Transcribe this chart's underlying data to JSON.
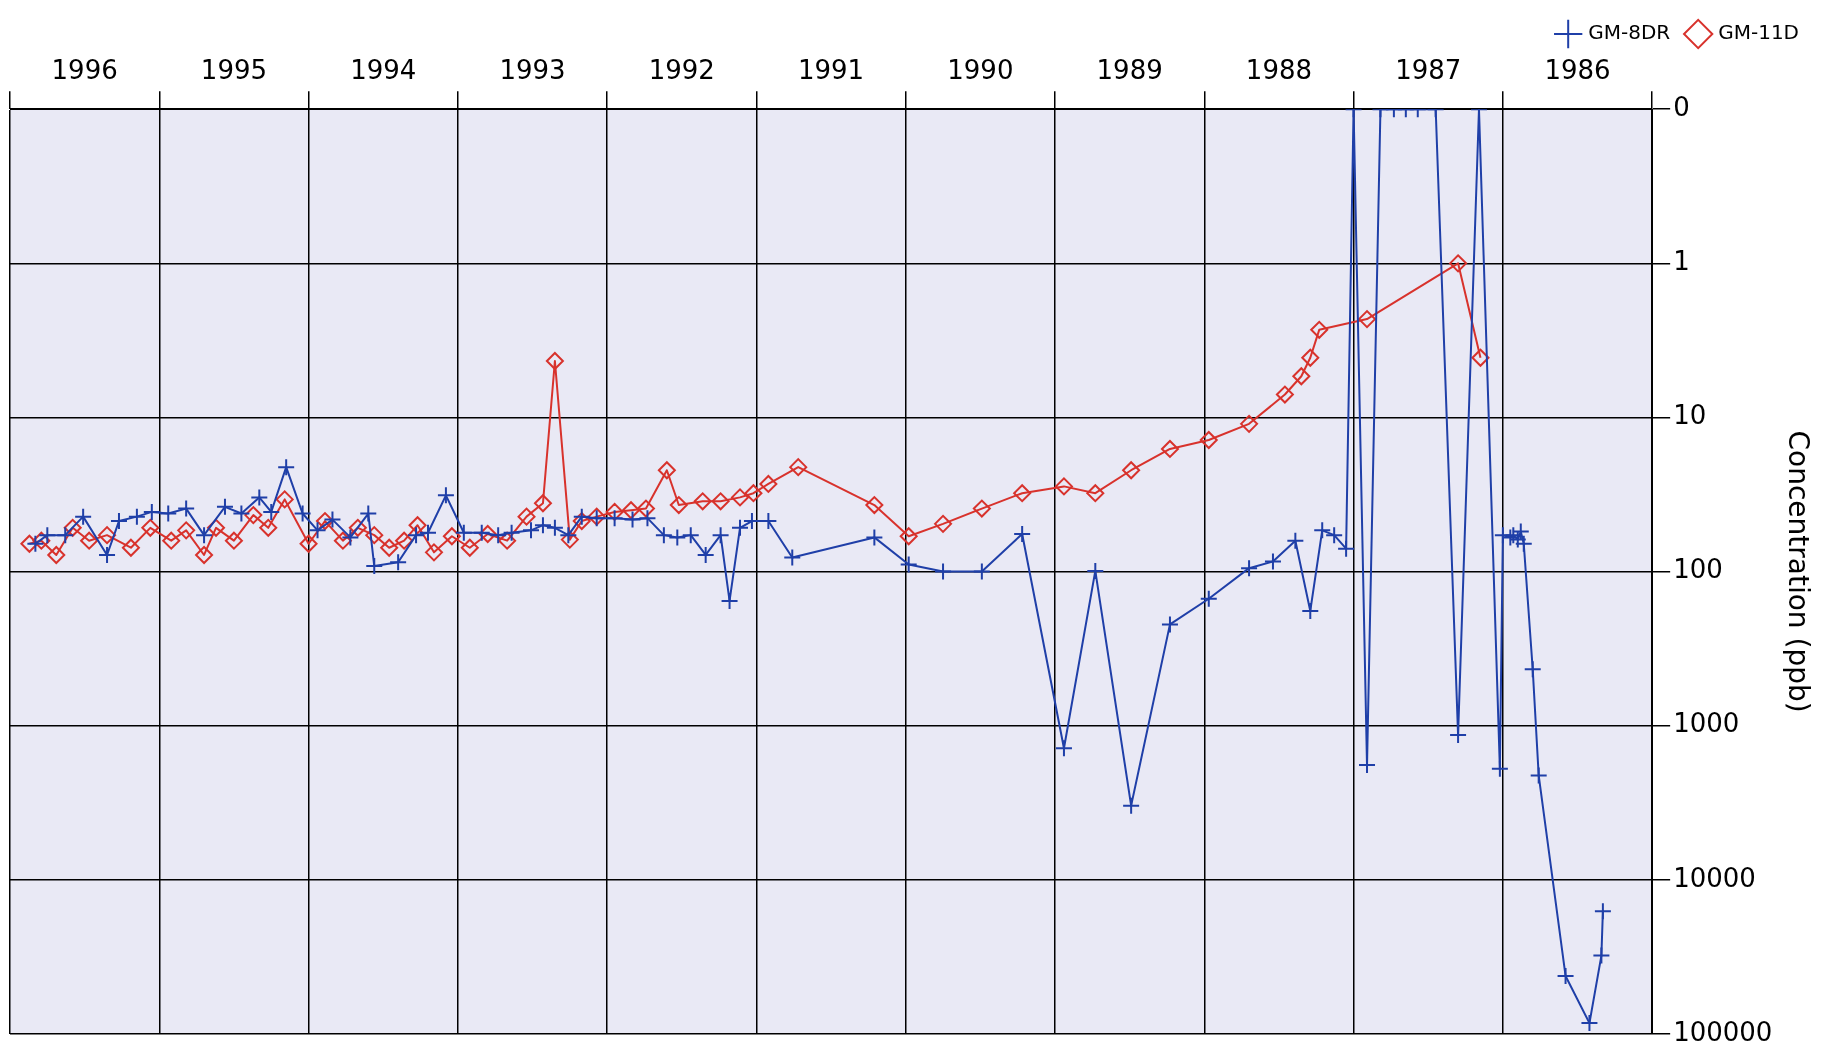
{
  "chart_data": {
    "type": "line",
    "ylabel": "Concentration (ppb)",
    "log": "y",
    "grid": true,
    "legend": "top right",
    "xlim": [
      1996,
      1985
    ],
    "xticks": [
      {
        "value": 1985,
        "label": null
      },
      {
        "value": 1985.5,
        "label": "1986"
      },
      {
        "value": 1986,
        "label": null
      },
      {
        "value": 1986.5,
        "label": "1987"
      },
      {
        "value": 1987,
        "label": null
      },
      {
        "value": 1987.5,
        "label": "1988"
      },
      {
        "value": 1988,
        "label": null
      },
      {
        "value": 1988.5,
        "label": "1989"
      },
      {
        "value": 1989,
        "label": null
      },
      {
        "value": 1989.5,
        "label": "1990"
      },
      {
        "value": 1990,
        "label": null
      },
      {
        "value": 1990.5,
        "label": "1991"
      },
      {
        "value": 1991,
        "label": null
      },
      {
        "value": 1991.5,
        "label": "1992"
      },
      {
        "value": 1992,
        "label": null
      },
      {
        "value": 1992.5,
        "label": "1993"
      },
      {
        "value": 1993,
        "label": null
      },
      {
        "value": 1993.5,
        "label": "1994"
      },
      {
        "value": 1994,
        "label": null
      },
      {
        "value": 1994.5,
        "label": "1995"
      },
      {
        "value": 1995,
        "label": null
      },
      {
        "value": 1995.5,
        "label": "1996"
      },
      {
        "value": 1996,
        "label": null
      }
    ],
    "ylim": [
      100000,
      0.1
    ],
    "yticks": [
      {
        "value": 0.1,
        "label": "0"
      },
      1,
      10,
      100,
      1000,
      10000,
      100000
    ],
    "series": [
      {
        "name": "GM-8DR",
        "color": "#1f3fa8",
        "marker": "cross",
        "x": [
          1985.33,
          1985.34,
          1985.42,
          1985.58,
          1985.76,
          1985.8,
          1985.86,
          1985.88,
          1985.9,
          1985.93,
          1985.95,
          1986,
          1986.02,
          1986.16,
          1986.3,
          1986.45,
          1986.57,
          1986.65,
          1986.73,
          1986.82,
          1986.91,
          1987,
          1987.05,
          1987.13,
          1987.21,
          1987.29,
          1987.39,
          1987.54,
          1987.7,
          1987.97,
          1988.23,
          1988.49,
          1988.73,
          1988.94,
          1989.22,
          1989.49,
          1989.75,
          1989.98,
          1990.21,
          1990.76,
          1990.92,
          1991.03,
          1991.11,
          1991.18,
          1991.24,
          1991.34,
          1991.44,
          1991.53,
          1991.62,
          1991.73,
          1991.83,
          1991.95,
          1992.07,
          1992.17,
          1992.26,
          1992.35,
          1992.43,
          1992.51,
          1992.64,
          1992.73,
          1992.84,
          1992.96,
          1993.08,
          1993.2,
          1993.28,
          1993.4,
          1993.56,
          1993.6,
          1993.72,
          1993.84,
          1993.94,
          1994.04,
          1994.15,
          1994.25,
          1994.33,
          1994.45,
          1994.56,
          1994.7,
          1994.82,
          1994.94,
          1995.05,
          1995.15,
          1995.27,
          1995.35,
          1995.51,
          1995.63,
          1995.75,
          1995.83
        ],
        "values": [
          16000,
          31000,
          85000,
          42000,
          2100,
          430,
          66,
          55,
          62,
          58,
          60,
          58,
          1900,
          0.1,
          1150,
          0.1,
          0.1,
          0.1,
          0.1,
          0.1,
          1800,
          0.1,
          71,
          58,
          54,
          180,
          63,
          86,
          95,
          150,
          220,
          3300,
          99,
          1400,
          57,
          100,
          100,
          90,
          60,
          81,
          47,
          47,
          52,
          155,
          58,
          78,
          58,
          60,
          58,
          45,
          46,
          45,
          45,
          44,
          58,
          52,
          50,
          54,
          56,
          58,
          56,
          56,
          32,
          56,
          58,
          87,
          92,
          42,
          60,
          46,
          54,
          42,
          21,
          41,
          33,
          42,
          38,
          58,
          39,
          42,
          41,
          44,
          47,
          78,
          44,
          58,
          58,
          66
        ]
      },
      {
        "name": "GM-11D",
        "color": "#d8322c",
        "marker": "diamond",
        "x": [
          1986.15,
          1986.3,
          1986.91,
          1987.23,
          1987.29,
          1987.35,
          1987.46,
          1987.7,
          1987.97,
          1988.23,
          1988.49,
          1988.73,
          1988.94,
          1989.22,
          1989.49,
          1989.75,
          1989.98,
          1990.21,
          1990.72,
          1990.92,
          1991.02,
          1991.11,
          1991.24,
          1991.36,
          1991.52,
          1991.6,
          1991.74,
          1991.84,
          1991.95,
          1992.07,
          1992.17,
          1992.25,
          1992.35,
          1992.43,
          1992.54,
          1992.67,
          1992.8,
          1992.92,
          1993.04,
          1993.16,
          1993.27,
          1993.36,
          1993.46,
          1993.56,
          1993.67,
          1993.77,
          1993.89,
          1994,
          1994.16,
          1994.27,
          1994.37,
          1994.5,
          1994.62,
          1994.7,
          1994.82,
          1994.92,
          1995.06,
          1995.19,
          1995.35,
          1995.47,
          1995.58,
          1995.69,
          1995.79,
          1995.87
        ],
        "values": [
          4.1,
          1,
          2.3,
          2.7,
          4.1,
          5.4,
          7.1,
          11,
          14,
          16,
          22,
          31,
          28,
          31,
          39,
          49,
          59,
          37,
          21,
          27,
          31,
          33,
          35,
          35,
          37,
          22,
          39,
          40,
          41,
          44,
          47,
          62,
          4.3,
          36,
          44,
          63,
          57,
          70,
          59,
          75,
          50,
          63,
          70,
          58,
          52,
          63,
          47,
          66,
          34,
          52,
          43,
          63,
          52,
          78,
          54,
          63,
          52,
          70,
          58,
          63,
          52,
          78,
          63,
          66
        ]
      }
    ]
  }
}
